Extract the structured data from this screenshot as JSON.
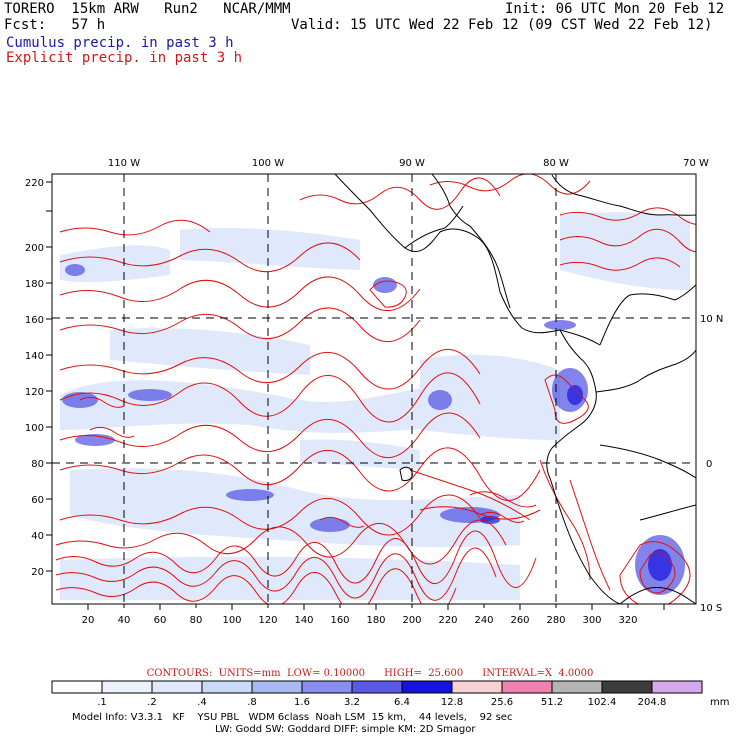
{
  "header": {
    "line1_left": "TORERO  15km ARW   Run2   NCAR/MMM",
    "line1_right": "Init: 06 UTC Mon 20 Feb 12",
    "line2_left": "Fcst:   57 h",
    "line2_right": "Valid: 15 UTC Wed 22 Feb 12 (09 CST Wed 22 Feb 12)",
    "line3": "Cumulus precip. in past 3 h",
    "line4": "Explicit precip. in past 3 h"
  },
  "map": {
    "lon_labels": [
      "110 W",
      "100 W",
      "90 W",
      "80 W",
      "70 W"
    ],
    "lat_labels": [
      "10 N",
      "0",
      "10 S"
    ],
    "x_ticks": [
      "20",
      "40",
      "60",
      "80",
      "100",
      "120",
      "140",
      "160",
      "180",
      "200",
      "220",
      "240",
      "260",
      "280",
      "300",
      "320"
    ],
    "y_ticks": [
      "20",
      "40",
      "60",
      "80",
      "100",
      "120",
      "140",
      "160",
      "180",
      "200",
      "220"
    ]
  },
  "contours": {
    "text": "CONTOURS:  UNITS=mm  LOW= 0.10000      HIGH=  25.600      INTERVAL=X  4.0000"
  },
  "colorbar": {
    "labels": [
      ".1",
      ".2",
      ".4",
      ".8",
      "1.6",
      "3.2",
      "6.4",
      "12.8",
      "25.6",
      "51.2",
      "102.4",
      "204.8"
    ],
    "unit": "mm",
    "colors": [
      "#ffffff",
      "#eef2fe",
      "#dfe8fc",
      "#c9dbf8",
      "#a8b9f2",
      "#8a8ef0",
      "#5a5ae6",
      "#1414e0",
      "#f8d2d2",
      "#f080b0",
      "#b4b4b4",
      "#3c3c3c",
      "#d7a8f0"
    ]
  },
  "footer": {
    "line1": "Model Info: V3.3.1   KF    YSU PBL   WDM 6class  Noah LSM  15 km,    44 levels,    92 sec",
    "line2": "LW: Godd SW: Goddard DIFF: simple KM: 2D Smagor"
  }
}
